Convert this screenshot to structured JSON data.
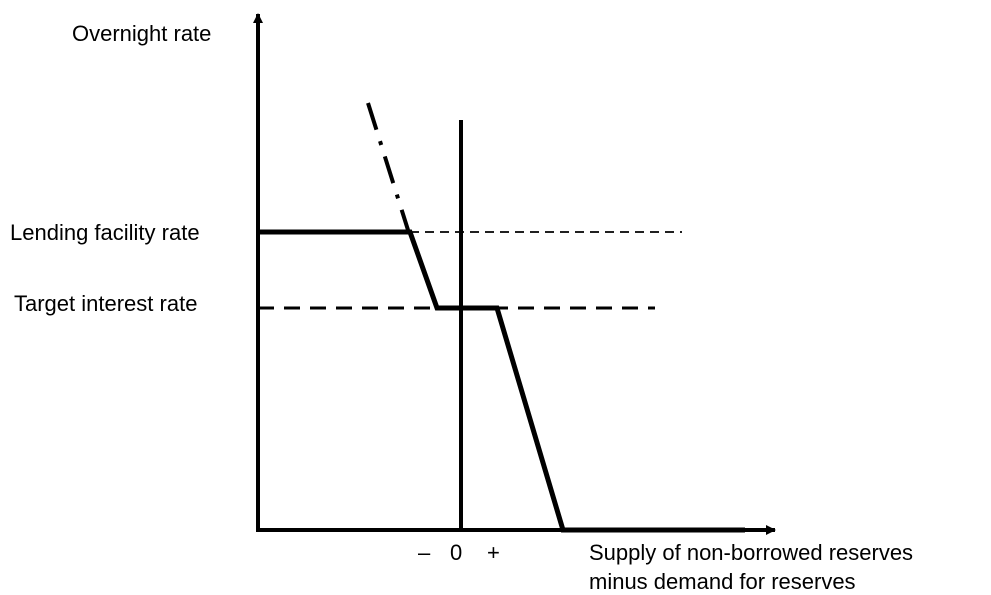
{
  "diagram": {
    "y_axis_label": "Overnight rate",
    "lending_rate_label": "Lending facility rate",
    "target_rate_label": "Target interest rate",
    "x_tick_minus": "–",
    "x_tick_zero": "0",
    "x_tick_plus": "+",
    "x_axis_label_line1": "Supply of non-borrowed reserves",
    "x_axis_label_line2": "minus demand for reserves"
  }
}
